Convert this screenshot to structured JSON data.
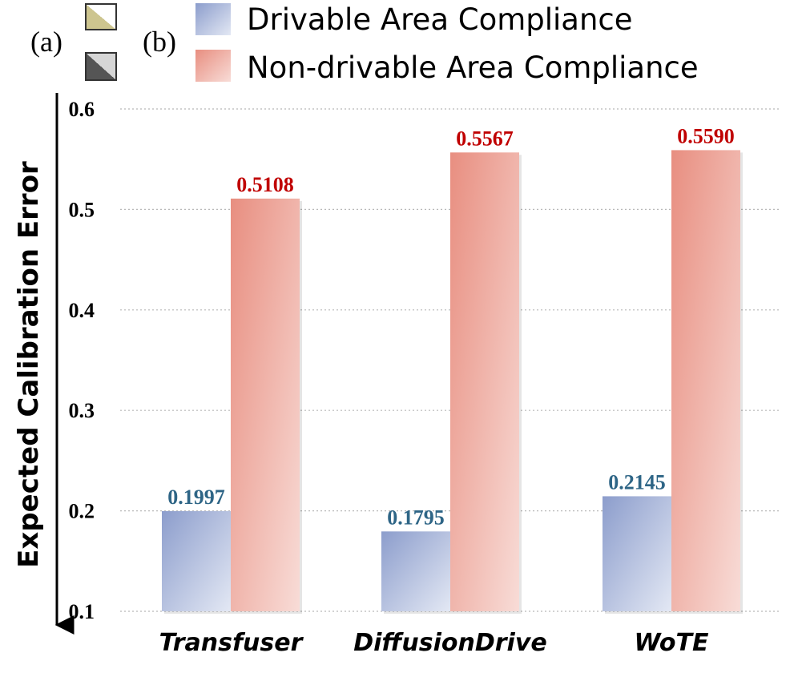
{
  "chart_data": {
    "type": "bar",
    "title": "",
    "xlabel": "",
    "ylabel": "Expected Calibration Error",
    "ylim": [
      0.1,
      0.6
    ],
    "yticks": [
      "0.1",
      "0.2",
      "0.3",
      "0.4",
      "0.5",
      "0.6"
    ],
    "grid": true,
    "categories": [
      "Transfuser",
      "DiffusionDrive",
      "WoTE"
    ],
    "series": [
      {
        "name": "Drivable Area Compliance",
        "values": [
          0.1997,
          0.1795,
          0.2145
        ],
        "labels": [
          "0.1997",
          "0.1795",
          "0.2145"
        ],
        "color": "#8fa0cf",
        "label_color": "#2e6586"
      },
      {
        "name": "Non-drivable Area Compliance",
        "values": [
          0.5108,
          0.5567,
          0.559
        ],
        "labels": [
          "0.5108",
          "0.5567",
          "0.5590"
        ],
        "color": "#e98f82",
        "label_color": "#c00000"
      }
    ],
    "legend_position": "top",
    "legend_markers": {
      "a": "(a)",
      "b": "(b)"
    },
    "marker_colors": {
      "a": "#cdc58f",
      "b": "#555555"
    }
  }
}
